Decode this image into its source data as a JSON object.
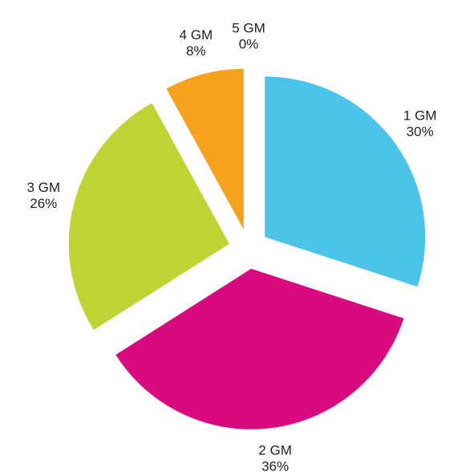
{
  "chart_data": {
    "type": "pie",
    "categories": [
      "1 GM",
      "2 GM",
      "3 GM",
      "4 GM",
      "5 GM"
    ],
    "values": [
      30,
      36,
      26,
      8,
      0
    ],
    "value_labels": [
      "30%",
      "36%",
      "26%",
      "8%",
      "0%"
    ],
    "colors": [
      "#4cc4ea",
      "#d90a80",
      "#bdd432",
      "#f7a21d",
      "#9b59b6"
    ]
  }
}
